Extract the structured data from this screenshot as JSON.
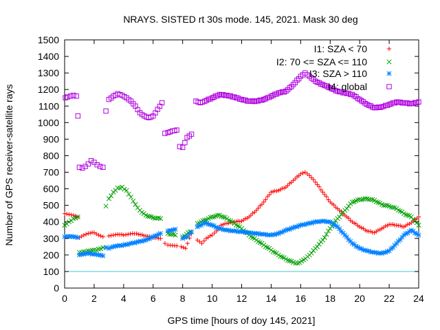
{
  "chart_data": {
    "type": "scatter",
    "title": "NRAYS. SISTED rt 30s mode. 145, 2021. Mask 30 deg",
    "xlabel": "GPS time [hours of doy 145, 2021]",
    "ylabel": "Number of GPS receiver-satellite rays",
    "xlim": [
      0,
      24
    ],
    "ylim": [
      0,
      1500
    ],
    "xticks": [
      "0",
      "2",
      "4",
      "6",
      "8",
      "10",
      "12",
      "14",
      "16",
      "18",
      "20",
      "22",
      "24"
    ],
    "yticks": [
      "0",
      "100",
      "200",
      "300",
      "400",
      "500",
      "600",
      "700",
      "800",
      "900",
      "1000",
      "1100",
      "1200",
      "1300",
      "1400",
      "1500"
    ],
    "threshold_line": 100,
    "series": [
      {
        "name": "I1: SZA < 70",
        "color": "#ff0000",
        "marker": "+",
        "points": [
          [
            0.0,
            450
          ],
          [
            0.3,
            445
          ],
          [
            0.6,
            440
          ],
          [
            0.9,
            430
          ],
          [
            1.0,
            305
          ],
          [
            1.3,
            320
          ],
          [
            1.6,
            330
          ],
          [
            2.0,
            335
          ],
          [
            2.3,
            320
          ],
          [
            2.6,
            310
          ],
          [
            3.0,
            315
          ],
          [
            3.3,
            320
          ],
          [
            3.6,
            325
          ],
          [
            4.0,
            320
          ],
          [
            4.3,
            325
          ],
          [
            4.6,
            330
          ],
          [
            5.0,
            325
          ],
          [
            5.5,
            315
          ],
          [
            6.0,
            305
          ],
          [
            6.5,
            300
          ],
          [
            6.8,
            270
          ],
          [
            7.0,
            260
          ],
          [
            7.3,
            258
          ],
          [
            7.6,
            255
          ],
          [
            7.9,
            250
          ],
          [
            8.2,
            240
          ],
          [
            8.6,
            330
          ],
          [
            9.0,
            290
          ],
          [
            9.3,
            270
          ],
          [
            9.6,
            300
          ],
          [
            10.0,
            320
          ],
          [
            10.3,
            345
          ],
          [
            10.6,
            380
          ],
          [
            11.0,
            390
          ],
          [
            11.5,
            400
          ],
          [
            12.0,
            405
          ],
          [
            12.5,
            430
          ],
          [
            13.0,
            470
          ],
          [
            13.5,
            520
          ],
          [
            14.0,
            580
          ],
          [
            14.5,
            590
          ],
          [
            15.0,
            610
          ],
          [
            15.5,
            650
          ],
          [
            16.0,
            690
          ],
          [
            16.3,
            700
          ],
          [
            16.6,
            680
          ],
          [
            17.0,
            640
          ],
          [
            17.5,
            580
          ],
          [
            18.0,
            520
          ],
          [
            18.5,
            480
          ],
          [
            19.0,
            440
          ],
          [
            19.5,
            400
          ],
          [
            20.0,
            370
          ],
          [
            20.5,
            345
          ],
          [
            21.0,
            335
          ],
          [
            21.5,
            360
          ],
          [
            22.0,
            385
          ],
          [
            22.5,
            380
          ],
          [
            23.0,
            370
          ],
          [
            23.5,
            395
          ],
          [
            24.0,
            430
          ]
        ]
      },
      {
        "name": "I2: 70 <= SZA <= 110",
        "color": "#00a000",
        "marker": "x",
        "points": [
          [
            0.0,
            380
          ],
          [
            0.3,
            400
          ],
          [
            0.6,
            420
          ],
          [
            0.9,
            430
          ],
          [
            1.0,
            215
          ],
          [
            1.3,
            220
          ],
          [
            1.6,
            225
          ],
          [
            2.0,
            230
          ],
          [
            2.3,
            235
          ],
          [
            2.6,
            245
          ],
          [
            2.8,
            495
          ],
          [
            3.0,
            540
          ],
          [
            3.3,
            580
          ],
          [
            3.6,
            605
          ],
          [
            3.9,
            610
          ],
          [
            4.2,
            590
          ],
          [
            4.5,
            550
          ],
          [
            4.8,
            505
          ],
          [
            5.1,
            470
          ],
          [
            5.5,
            440
          ],
          [
            6.0,
            425
          ],
          [
            6.5,
            420
          ],
          [
            7.0,
            330
          ],
          [
            7.5,
            320
          ],
          [
            8.0,
            310
          ],
          [
            8.5,
            340
          ],
          [
            9.0,
            390
          ],
          [
            9.5,
            410
          ],
          [
            10.0,
            430
          ],
          [
            10.5,
            440
          ],
          [
            11.0,
            420
          ],
          [
            11.5,
            390
          ],
          [
            12.0,
            360
          ],
          [
            12.5,
            320
          ],
          [
            13.0,
            290
          ],
          [
            13.5,
            260
          ],
          [
            14.0,
            230
          ],
          [
            14.5,
            200
          ],
          [
            15.0,
            175
          ],
          [
            15.5,
            155
          ],
          [
            15.8,
            150
          ],
          [
            16.2,
            170
          ],
          [
            16.6,
            200
          ],
          [
            17.0,
            240
          ],
          [
            17.5,
            290
          ],
          [
            18.0,
            360
          ],
          [
            18.5,
            420
          ],
          [
            19.0,
            470
          ],
          [
            19.5,
            520
          ],
          [
            20.0,
            535
          ],
          [
            20.5,
            540
          ],
          [
            21.0,
            530
          ],
          [
            21.5,
            505
          ],
          [
            22.0,
            495
          ],
          [
            22.5,
            480
          ],
          [
            23.0,
            450
          ],
          [
            23.5,
            430
          ],
          [
            24.0,
            380
          ]
        ]
      },
      {
        "name": "I3: SZA > 110",
        "color": "#0080ff",
        "marker": "*",
        "points": [
          [
            0.0,
            310
          ],
          [
            0.3,
            312
          ],
          [
            0.6,
            310
          ],
          [
            0.9,
            305
          ],
          [
            1.0,
            200
          ],
          [
            1.3,
            205
          ],
          [
            1.6,
            210
          ],
          [
            2.0,
            205
          ],
          [
            2.3,
            200
          ],
          [
            2.6,
            195
          ],
          [
            2.8,
            245
          ],
          [
            3.0,
            240
          ],
          [
            3.3,
            250
          ],
          [
            3.6,
            255
          ],
          [
            4.0,
            260
          ],
          [
            4.5,
            270
          ],
          [
            5.0,
            280
          ],
          [
            5.5,
            290
          ],
          [
            6.0,
            310
          ],
          [
            6.5,
            330
          ],
          [
            7.0,
            345
          ],
          [
            7.5,
            355
          ],
          [
            8.0,
            300
          ],
          [
            8.3,
            310
          ],
          [
            8.6,
            340
          ],
          [
            9.0,
            370
          ],
          [
            9.5,
            395
          ],
          [
            10.0,
            380
          ],
          [
            10.5,
            360
          ],
          [
            11.0,
            350
          ],
          [
            11.5,
            345
          ],
          [
            12.0,
            340
          ],
          [
            12.5,
            335
          ],
          [
            13.0,
            330
          ],
          [
            13.5,
            325
          ],
          [
            14.0,
            320
          ],
          [
            14.5,
            330
          ],
          [
            15.0,
            350
          ],
          [
            15.5,
            365
          ],
          [
            16.0,
            380
          ],
          [
            16.5,
            390
          ],
          [
            17.0,
            400
          ],
          [
            17.5,
            405
          ],
          [
            18.0,
            400
          ],
          [
            18.5,
            370
          ],
          [
            19.0,
            320
          ],
          [
            19.5,
            270
          ],
          [
            20.0,
            240
          ],
          [
            20.5,
            225
          ],
          [
            21.0,
            215
          ],
          [
            21.5,
            210
          ],
          [
            22.0,
            225
          ],
          [
            22.5,
            270
          ],
          [
            23.0,
            320
          ],
          [
            23.5,
            350
          ],
          [
            24.0,
            320
          ]
        ]
      },
      {
        "name": "I4: global",
        "color": "#b000e0",
        "marker": "square",
        "points": [
          [
            0.05,
            1150
          ],
          [
            0.2,
            1155
          ],
          [
            0.4,
            1160
          ],
          [
            0.6,
            1165
          ],
          [
            0.8,
            1160
          ],
          [
            0.9,
            1040
          ],
          [
            1.0,
            730
          ],
          [
            1.2,
            725
          ],
          [
            1.4,
            735
          ],
          [
            1.6,
            750
          ],
          [
            1.8,
            770
          ],
          [
            2.0,
            760
          ],
          [
            2.2,
            745
          ],
          [
            2.4,
            735
          ],
          [
            2.6,
            730
          ],
          [
            2.8,
            1070
          ],
          [
            3.0,
            1140
          ],
          [
            3.3,
            1160
          ],
          [
            3.6,
            1175
          ],
          [
            3.9,
            1165
          ],
          [
            4.2,
            1150
          ],
          [
            4.5,
            1130
          ],
          [
            4.8,
            1100
          ],
          [
            5.1,
            1060
          ],
          [
            5.4,
            1040
          ],
          [
            5.7,
            1030
          ],
          [
            6.0,
            1040
          ],
          [
            6.3,
            1080
          ],
          [
            6.6,
            1120
          ],
          [
            6.8,
            935
          ],
          [
            7.0,
            940
          ],
          [
            7.3,
            950
          ],
          [
            7.6,
            955
          ],
          [
            7.8,
            855
          ],
          [
            8.0,
            850
          ],
          [
            8.3,
            910
          ],
          [
            8.6,
            930
          ],
          [
            8.9,
            1130
          ],
          [
            9.2,
            1120
          ],
          [
            9.5,
            1130
          ],
          [
            10.0,
            1150
          ],
          [
            10.5,
            1170
          ],
          [
            11.0,
            1165
          ],
          [
            11.5,
            1155
          ],
          [
            12.0,
            1140
          ],
          [
            12.5,
            1130
          ],
          [
            13.0,
            1130
          ],
          [
            13.5,
            1140
          ],
          [
            14.0,
            1160
          ],
          [
            14.5,
            1180
          ],
          [
            15.0,
            1190
          ],
          [
            15.5,
            1230
          ],
          [
            16.0,
            1280
          ],
          [
            16.3,
            1300
          ],
          [
            16.6,
            1280
          ],
          [
            17.0,
            1250
          ],
          [
            17.5,
            1230
          ],
          [
            18.0,
            1210
          ],
          [
            18.5,
            1190
          ],
          [
            19.0,
            1180
          ],
          [
            19.5,
            1170
          ],
          [
            20.0,
            1140
          ],
          [
            20.5,
            1110
          ],
          [
            21.0,
            1090
          ],
          [
            21.5,
            1095
          ],
          [
            22.0,
            1110
          ],
          [
            22.5,
            1125
          ],
          [
            23.0,
            1120
          ],
          [
            23.5,
            1115
          ],
          [
            24.0,
            1125
          ]
        ]
      }
    ]
  }
}
